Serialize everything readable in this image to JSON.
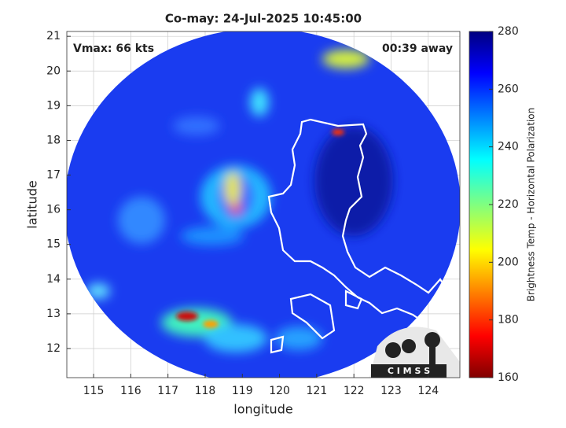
{
  "chart_data": {
    "type": "map",
    "title": "Co-may: 24-Jul-2025 10:45:00",
    "annotations": [
      "Vmax: 66 kts",
      "00:39 away"
    ],
    "xlabel": "longitude",
    "ylabel": "latitude",
    "xlim": [
      114.28,
      124.85
    ],
    "ylim": [
      11.16,
      21.14
    ],
    "xticks": [
      115,
      116,
      117,
      118,
      119,
      120,
      121,
      122,
      123,
      124
    ],
    "yticks": [
      12,
      13,
      14,
      15,
      16,
      17,
      18,
      19,
      20,
      21
    ],
    "grid": true,
    "colorbar": {
      "label": "Brightness Temp - Horizontal Polarization",
      "lim": [
        160,
        280
      ],
      "ticks": [
        160,
        180,
        200,
        220,
        240,
        260,
        280
      ],
      "colormap": "jet"
    },
    "logo_text": "C I M S S"
  }
}
